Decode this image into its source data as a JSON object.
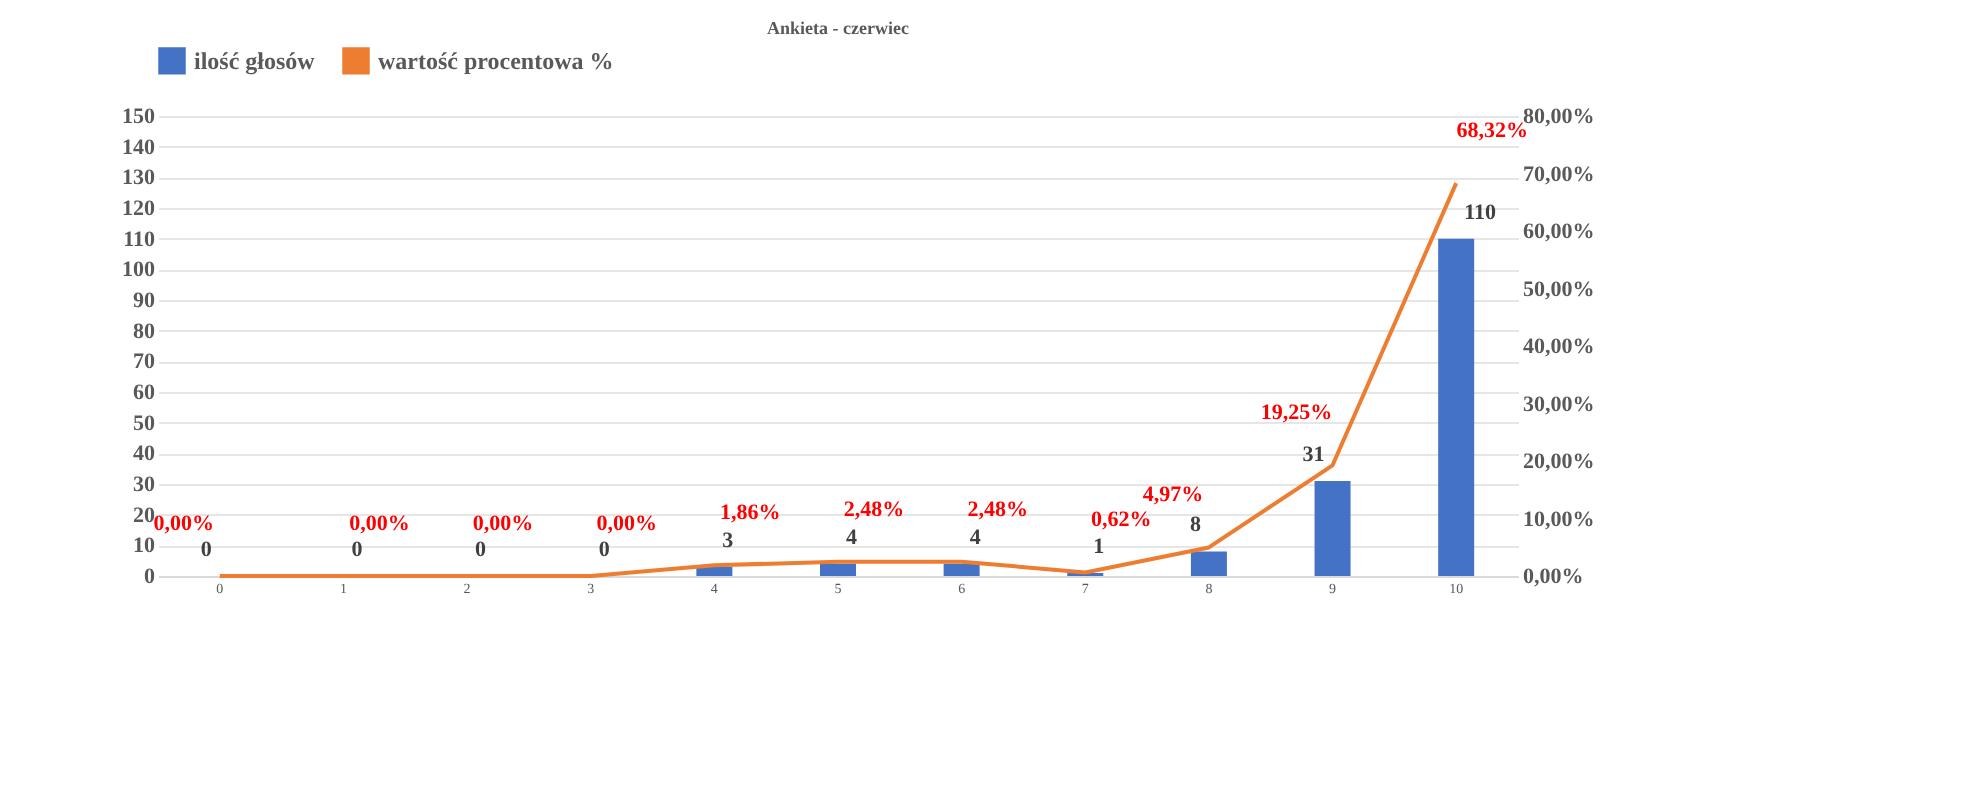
{
  "chart_data": {
    "type": "bar",
    "title": "Ankieta - czerwiec",
    "categories": [
      "0",
      "1",
      "2",
      "3",
      "4",
      "5",
      "6",
      "7",
      "8",
      "9",
      "10"
    ],
    "series": [
      {
        "name": "ilość głosów",
        "color": "#4472c4",
        "values": [
          0,
          0,
          0,
          0,
          3,
          4,
          4,
          1,
          8,
          31,
          110
        ],
        "value_labels": [
          "0",
          "0",
          "0",
          "0",
          "3",
          "4",
          "4",
          "1",
          "8",
          "31",
          "110"
        ]
      },
      {
        "name": "wartość procentowa %",
        "type": "line",
        "axis": "y2",
        "color": "#ed7d31",
        "values": [
          0,
          0,
          0,
          0,
          1.86,
          2.48,
          2.48,
          0.62,
          4.97,
          19.25,
          68.32
        ],
        "value_labels": [
          "0,00%",
          "0,00%",
          "0,00%",
          "0,00%",
          "1,86%",
          "2,48%",
          "2,48%",
          "0,62%",
          "4,97%",
          "19,25%",
          "68,32%"
        ]
      }
    ],
    "ylim": [
      0,
      150
    ],
    "yticks": [
      0,
      10,
      20,
      30,
      40,
      50,
      60,
      70,
      80,
      90,
      100,
      110,
      120,
      130,
      140,
      150
    ],
    "y2lim": [
      0,
      80
    ],
    "y2ticks": [
      {
        "value": 0,
        "label": "0,00%"
      },
      {
        "value": 10,
        "label": "10,00%"
      },
      {
        "value": 20,
        "label": "20,00%"
      },
      {
        "value": 30,
        "label": "30,00%"
      },
      {
        "value": 40,
        "label": "40,00%"
      },
      {
        "value": 50,
        "label": "50,00%"
      },
      {
        "value": 60,
        "label": "60,00%"
      },
      {
        "value": 70,
        "label": "70,00%"
      },
      {
        "value": 80,
        "label": "80,00%"
      }
    ],
    "grid": "y",
    "legend": "top",
    "marker": "none",
    "line_style": "solid"
  }
}
